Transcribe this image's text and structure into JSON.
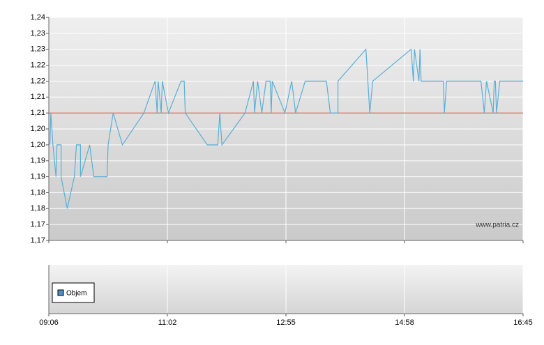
{
  "chart_data": [
    {
      "type": "line",
      "ylim": [
        1.17,
        1.24
      ],
      "yticks": [
        {
          "value": 1.24,
          "label": "1,24"
        },
        {
          "value": 1.235,
          "label": "1,23"
        },
        {
          "value": 1.23,
          "label": "1,23"
        },
        {
          "value": 1.225,
          "label": "1,22"
        },
        {
          "value": 1.22,
          "label": "1,22"
        },
        {
          "value": 1.215,
          "label": "1,21"
        },
        {
          "value": 1.21,
          "label": "1,21"
        },
        {
          "value": 1.205,
          "label": "1,20"
        },
        {
          "value": 1.2,
          "label": "1,20"
        },
        {
          "value": 1.195,
          "label": "1,19"
        },
        {
          "value": 1.19,
          "label": "1,19"
        },
        {
          "value": 1.185,
          "label": "1,18"
        },
        {
          "value": 1.18,
          "label": "1,18"
        },
        {
          "value": 1.175,
          "label": "1,17"
        },
        {
          "value": 1.17,
          "label": "1,17"
        }
      ],
      "grid": true,
      "reference_line": {
        "value": 1.21,
        "color": "#d9534f"
      },
      "watermark": "www.patria.cz",
      "series": [
        {
          "color": "#5aafd6",
          "x": [
            547,
            548,
            550,
            553,
            554,
            558,
            558,
            564,
            571,
            573,
            577,
            577,
            586,
            590,
            603,
            604,
            609,
            618,
            639,
            650,
            652,
            653,
            656,
            657,
            663,
            675,
            678,
            679,
            700,
            710,
            712,
            714,
            736,
            744,
            745,
            748,
            752,
            756,
            760,
            761,
            762,
            774,
            781,
            785,
            795,
            817,
            821,
            829,
            829,
            858,
            862,
            865,
            904,
            906,
            907,
            911,
            912,
            913,
            933,
            934,
            936,
            967,
            970,
            972,
            978,
            979,
            980,
            981,
            984,
            1005
          ],
          "values": [
            1.2,
            1.21,
            1.2,
            1.19,
            1.2,
            1.2,
            1.19,
            1.18,
            1.19,
            1.2,
            1.2,
            1.19,
            1.2,
            1.19,
            1.19,
            1.2,
            1.21,
            1.2,
            1.21,
            1.22,
            1.21,
            1.22,
            1.21,
            1.22,
            1.21,
            1.22,
            1.22,
            1.21,
            1.2,
            1.2,
            1.21,
            1.2,
            1.21,
            1.22,
            1.21,
            1.22,
            1.21,
            1.22,
            1.22,
            1.21,
            1.22,
            1.21,
            1.22,
            1.21,
            1.22,
            1.22,
            1.21,
            1.21,
            1.22,
            1.23,
            1.21,
            1.22,
            1.23,
            1.22,
            1.23,
            1.22,
            1.23,
            1.22,
            1.22,
            1.21,
            1.22,
            1.22,
            1.21,
            1.22,
            1.21,
            1.22,
            1.22,
            1.21,
            1.22,
            1.22
          ]
        }
      ]
    },
    {
      "type": "bar",
      "xlim": [
        546,
        1005
      ],
      "xticks": [
        {
          "value": 546,
          "label": "09:06"
        },
        {
          "value": 662,
          "label": "11:02"
        },
        {
          "value": 775,
          "label": "12:55"
        },
        {
          "value": 898,
          "label": "14:58"
        },
        {
          "value": 1005,
          "label": "16:45"
        }
      ],
      "legend": "bottom-left",
      "series": [
        {
          "name": "Objem",
          "color": "#4a90c8"
        }
      ]
    }
  ]
}
